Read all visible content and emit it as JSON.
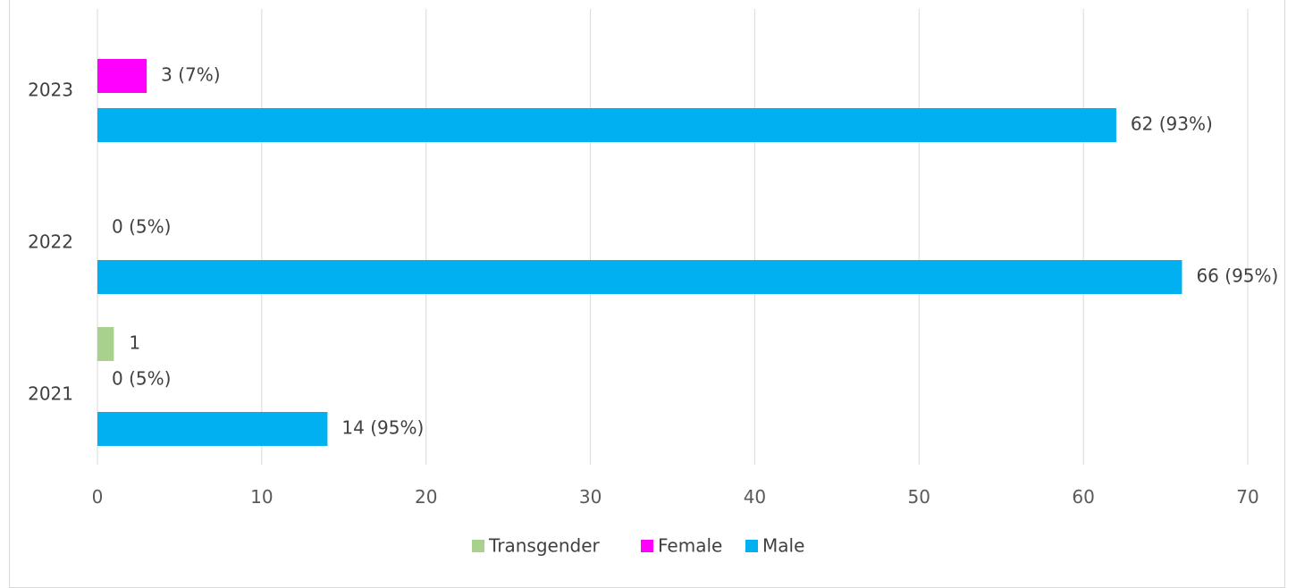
{
  "chart_data": {
    "type": "bar",
    "orientation": "horizontal",
    "categories": [
      "2021",
      "2022",
      "2023"
    ],
    "series": [
      {
        "name": "Transgender",
        "color": "#a9d18e",
        "values": [
          1,
          0,
          0
        ],
        "labels": [
          "1",
          "",
          ""
        ]
      },
      {
        "name": "Female",
        "color": "#ff00ff",
        "values": [
          0,
          0,
          3
        ],
        "labels": [
          "0 (5%)",
          "0 (5%)",
          "3 (7%)"
        ]
      },
      {
        "name": "Male",
        "color": "#00b0f0",
        "values": [
          14,
          66,
          62
        ],
        "labels": [
          "14 (95%)",
          "66 (95%)",
          "62 (93%)"
        ]
      }
    ],
    "xlim": [
      0,
      70
    ],
    "xticks": [
      0,
      10,
      20,
      30,
      40,
      50,
      60,
      70
    ],
    "grid": true,
    "legend": "bottom",
    "title": "",
    "xlabel": "",
    "ylabel": ""
  }
}
